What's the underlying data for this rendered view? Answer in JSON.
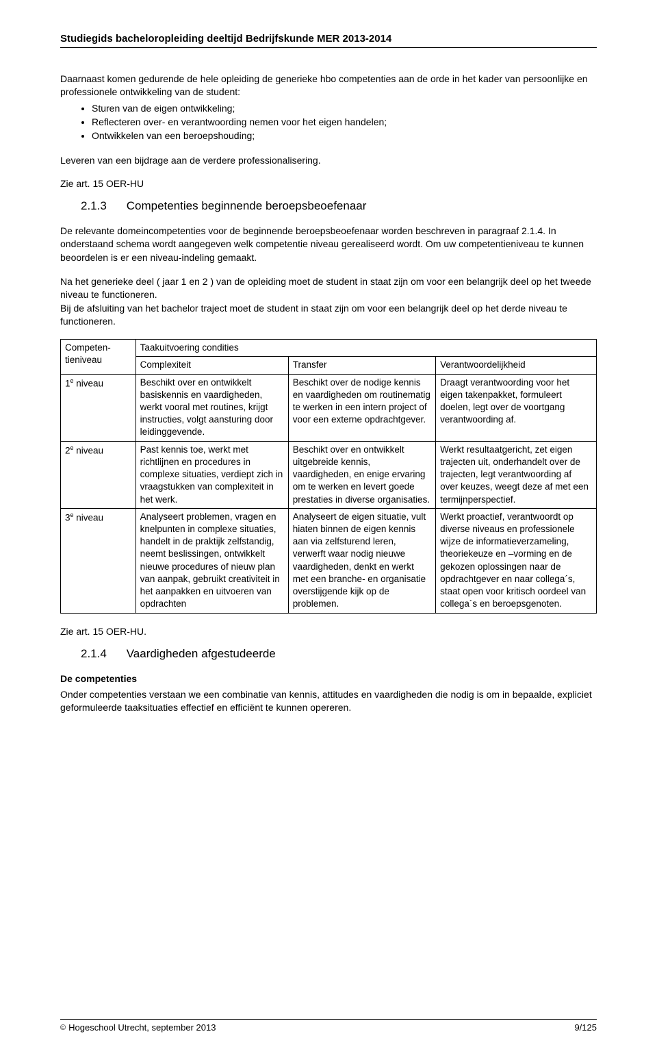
{
  "header": {
    "title": "Studiegids bacheloropleiding deeltijd Bedrijfskunde MER 2013-2014"
  },
  "intro": {
    "lead": "Daarnaast komen gedurende de hele opleiding de generieke hbo competenties aan de orde in het kader van persoonlijke en professionele ontwikkeling van de student:",
    "bullets": [
      "Sturen van de eigen ontwikkeling;",
      "Reflecteren over- en verantwoording nemen voor het eigen handelen;",
      "Ontwikkelen van een beroepshouding;"
    ],
    "after_list": "Leveren van een bijdrage aan de verdere professionalisering.",
    "ref": "Zie art. 15 OER-HU"
  },
  "section_213": {
    "num": "2.1.3",
    "title": "Competenties beginnende beroepsbeoefenaar",
    "p1": "De relevante domeincompetenties voor de beginnende beroepsbeoefenaar worden beschreven in paragraaf 2.1.4. In onderstaand schema wordt aangegeven welk competentie niveau gerealiseerd wordt. Om uw competentieniveau te kunnen beoordelen is er een niveau-indeling gemaakt.",
    "p2": "Na het generieke deel ( jaar 1 en 2 ) van de opleiding moet de student in staat zijn om voor een belangrijk deel op het tweede niveau te functioneren.",
    "p3": "Bij de afsluiting van het bachelor traject moet de student in staat zijn om voor een belangrijk deel op het derde niveau te functioneren."
  },
  "table": {
    "header_left": "Competen-tieniveau",
    "header_span": "Taakuitvoering condities",
    "sub_headers": [
      "Complexiteit",
      "Transfer",
      "Verantwoordelijkheid"
    ],
    "rows": [
      {
        "level_pre": "1",
        "level_sup": "e",
        "level_post": " niveau",
        "c1": "Beschikt over en ontwikkelt basiskennis en vaardigheden, werkt vooral met routines, krijgt instructies, volgt aansturing door leidinggevende.",
        "c2": "Beschikt over de nodige kennis en vaardigheden om routinematig te werken in een intern project of voor een externe opdrachtgever.",
        "c3": "Draagt verantwoording voor het eigen takenpakket, formuleert doelen, legt over de voortgang verantwoording af."
      },
      {
        "level_pre": "2",
        "level_sup": "e",
        "level_post": " niveau",
        "c1": "Past kennis toe, werkt met richtlijnen en procedures in complexe situaties, verdiept zich in vraagstukken van complexiteit in het werk.",
        "c2": "Beschikt over en ontwikkelt uitgebreide kennis, vaardigheden, en enige ervaring om te werken en levert goede prestaties in diverse organisaties.",
        "c3": "Werkt resultaatgericht, zet eigen trajecten uit, onderhandelt over de trajecten, legt verantwoording af over keuzes, weegt deze af met een termijnperspectief."
      },
      {
        "level_pre": "3",
        "level_sup": "e",
        "level_post": " niveau",
        "c1": "Analyseert problemen, vragen en knelpunten in complexe situaties, handelt in de praktijk zelfstandig, neemt beslissingen, ontwikkelt nieuwe procedures of nieuw plan van aanpak, gebruikt creativiteit in het aanpakken en uitvoeren van opdrachten",
        "c2": "Analyseert de eigen situatie, vult hiaten binnen de eigen kennis aan via zelfsturend leren, verwerft waar nodig nieuwe vaardigheden, denkt en werkt met een branche- en organisatie overstijgende kijk op de problemen.",
        "c3": "Werkt proactief, verantwoordt op diverse niveaus en professionele wijze de informatieverzameling, theoriekeuze en –vorming en de gekozen oplossingen naar de opdrachtgever en naar collega´s, staat open voor kritisch oordeel van collega´s en beroepsgenoten."
      }
    ],
    "after_ref": "Zie art. 15 OER-HU."
  },
  "section_214": {
    "num": "2.1.4",
    "title": "Vaardigheden afgestudeerde",
    "sub_bold": "De competenties",
    "body": "Onder competenties verstaan we een combinatie van kennis, attitudes en vaardigheden die nodig is om in bepaalde, expliciet geformuleerde taaksituaties effectief en efficiënt te kunnen opereren."
  },
  "footer": {
    "left": "Hogeschool Utrecht, september 2013",
    "right": "9/125"
  }
}
